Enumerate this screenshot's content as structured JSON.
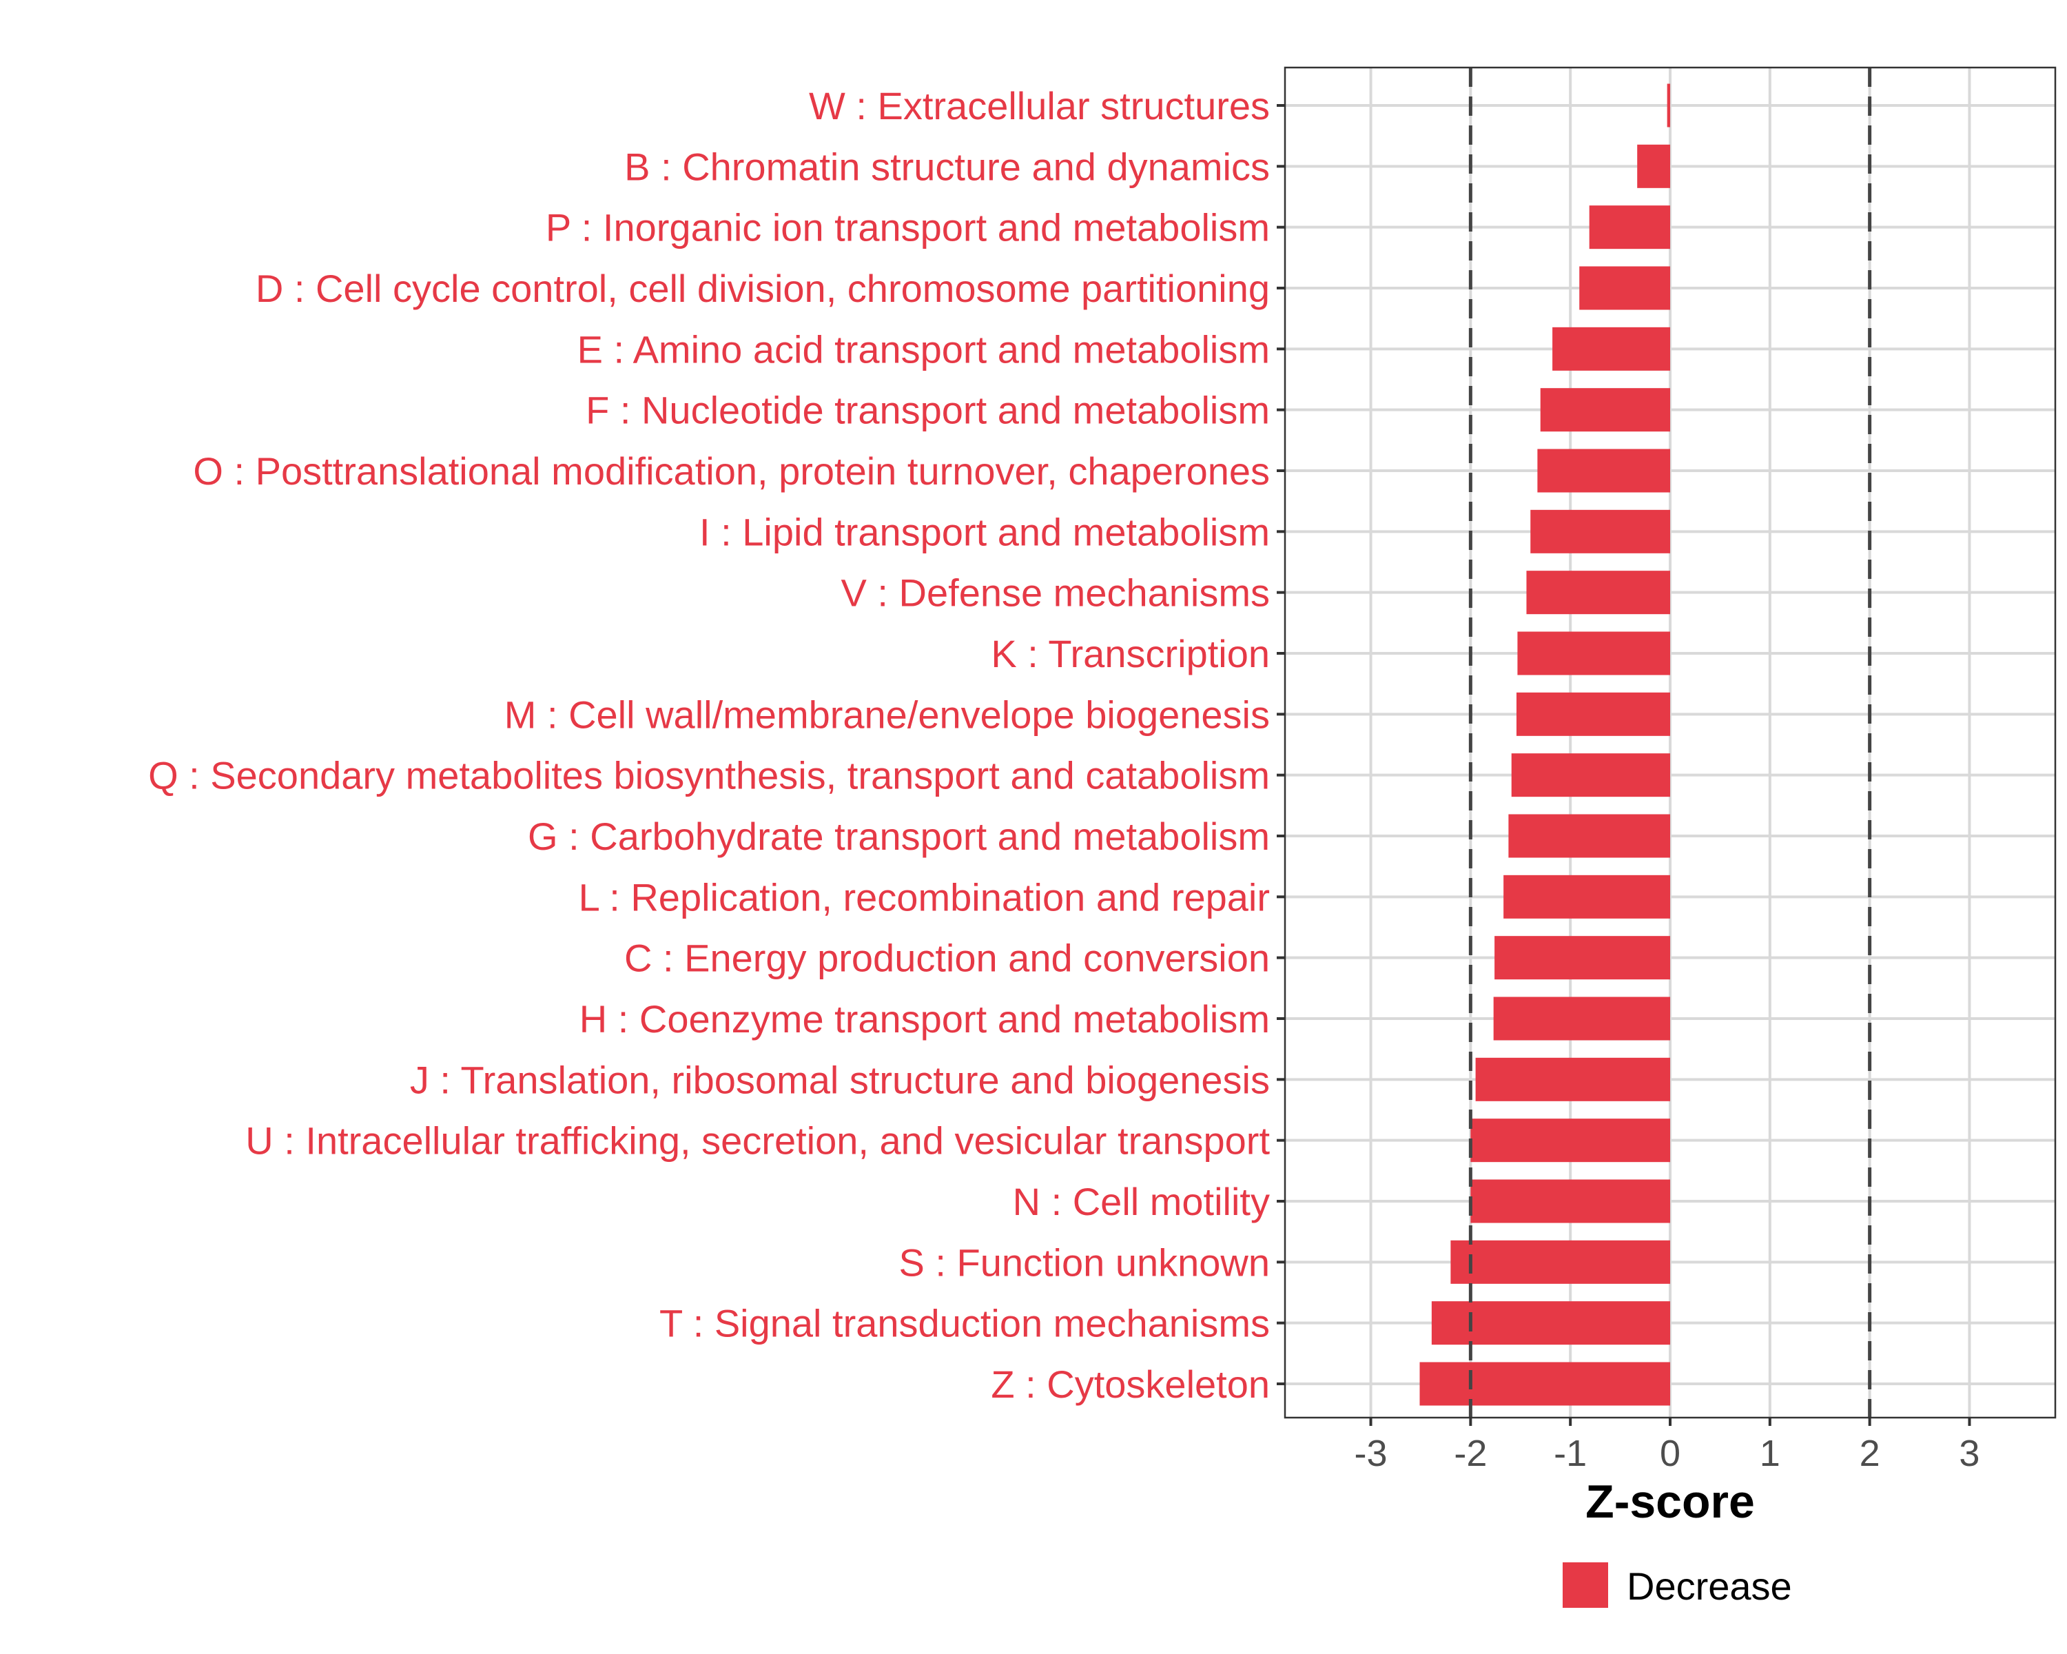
{
  "chart_data": {
    "type": "bar",
    "orientation": "horizontal",
    "title": "",
    "xlabel": "Z-score",
    "ylabel": "",
    "xlim": [
      -3.86,
      3.86
    ],
    "xticks": [
      -3,
      -2,
      -1,
      0,
      1,
      2,
      3
    ],
    "xtick_labels": [
      "-3",
      "-2",
      "-1",
      "0",
      "1",
      "2",
      "3"
    ],
    "reference_lines": [
      -2,
      2
    ],
    "grid": true,
    "legend": {
      "placement": "bottom",
      "entries": [
        {
          "label": "Decrease",
          "color": "#E63946"
        }
      ]
    },
    "label_color": "#E63946",
    "bar_color": "#E63946",
    "categories": [
      "W : Extracellular structures",
      "B : Chromatin structure and dynamics",
      "P : Inorganic ion transport and metabolism",
      "D : Cell cycle control, cell division, chromosome partitioning",
      "E : Amino acid transport and metabolism",
      "F : Nucleotide transport and metabolism",
      "O : Posttranslational modification, protein turnover, chaperones",
      "I : Lipid transport and metabolism",
      "V : Defense mechanisms",
      "K : Transcription",
      "M : Cell wall/membrane/envelope biogenesis",
      "Q : Secondary metabolites biosynthesis, transport and catabolism",
      "G : Carbohydrate transport and metabolism",
      "L : Replication, recombination and repair",
      "C : Energy production and conversion",
      "H : Coenzyme transport and metabolism",
      "J : Translation, ribosomal structure and biogenesis",
      "U : Intracellular trafficking, secretion, and vesicular transport",
      "N : Cell motility",
      "S : Function unknown",
      "T : Signal transduction mechanisms",
      "Z : Cytoskeleton"
    ],
    "series": [
      {
        "name": "Decrease",
        "values": [
          -0.03,
          -0.33,
          -0.81,
          -0.91,
          -1.18,
          -1.3,
          -1.33,
          -1.4,
          -1.44,
          -1.53,
          -1.54,
          -1.59,
          -1.62,
          -1.67,
          -1.76,
          -1.77,
          -1.95,
          -2.0,
          -2.0,
          -2.2,
          -2.39,
          -2.51
        ]
      }
    ]
  }
}
